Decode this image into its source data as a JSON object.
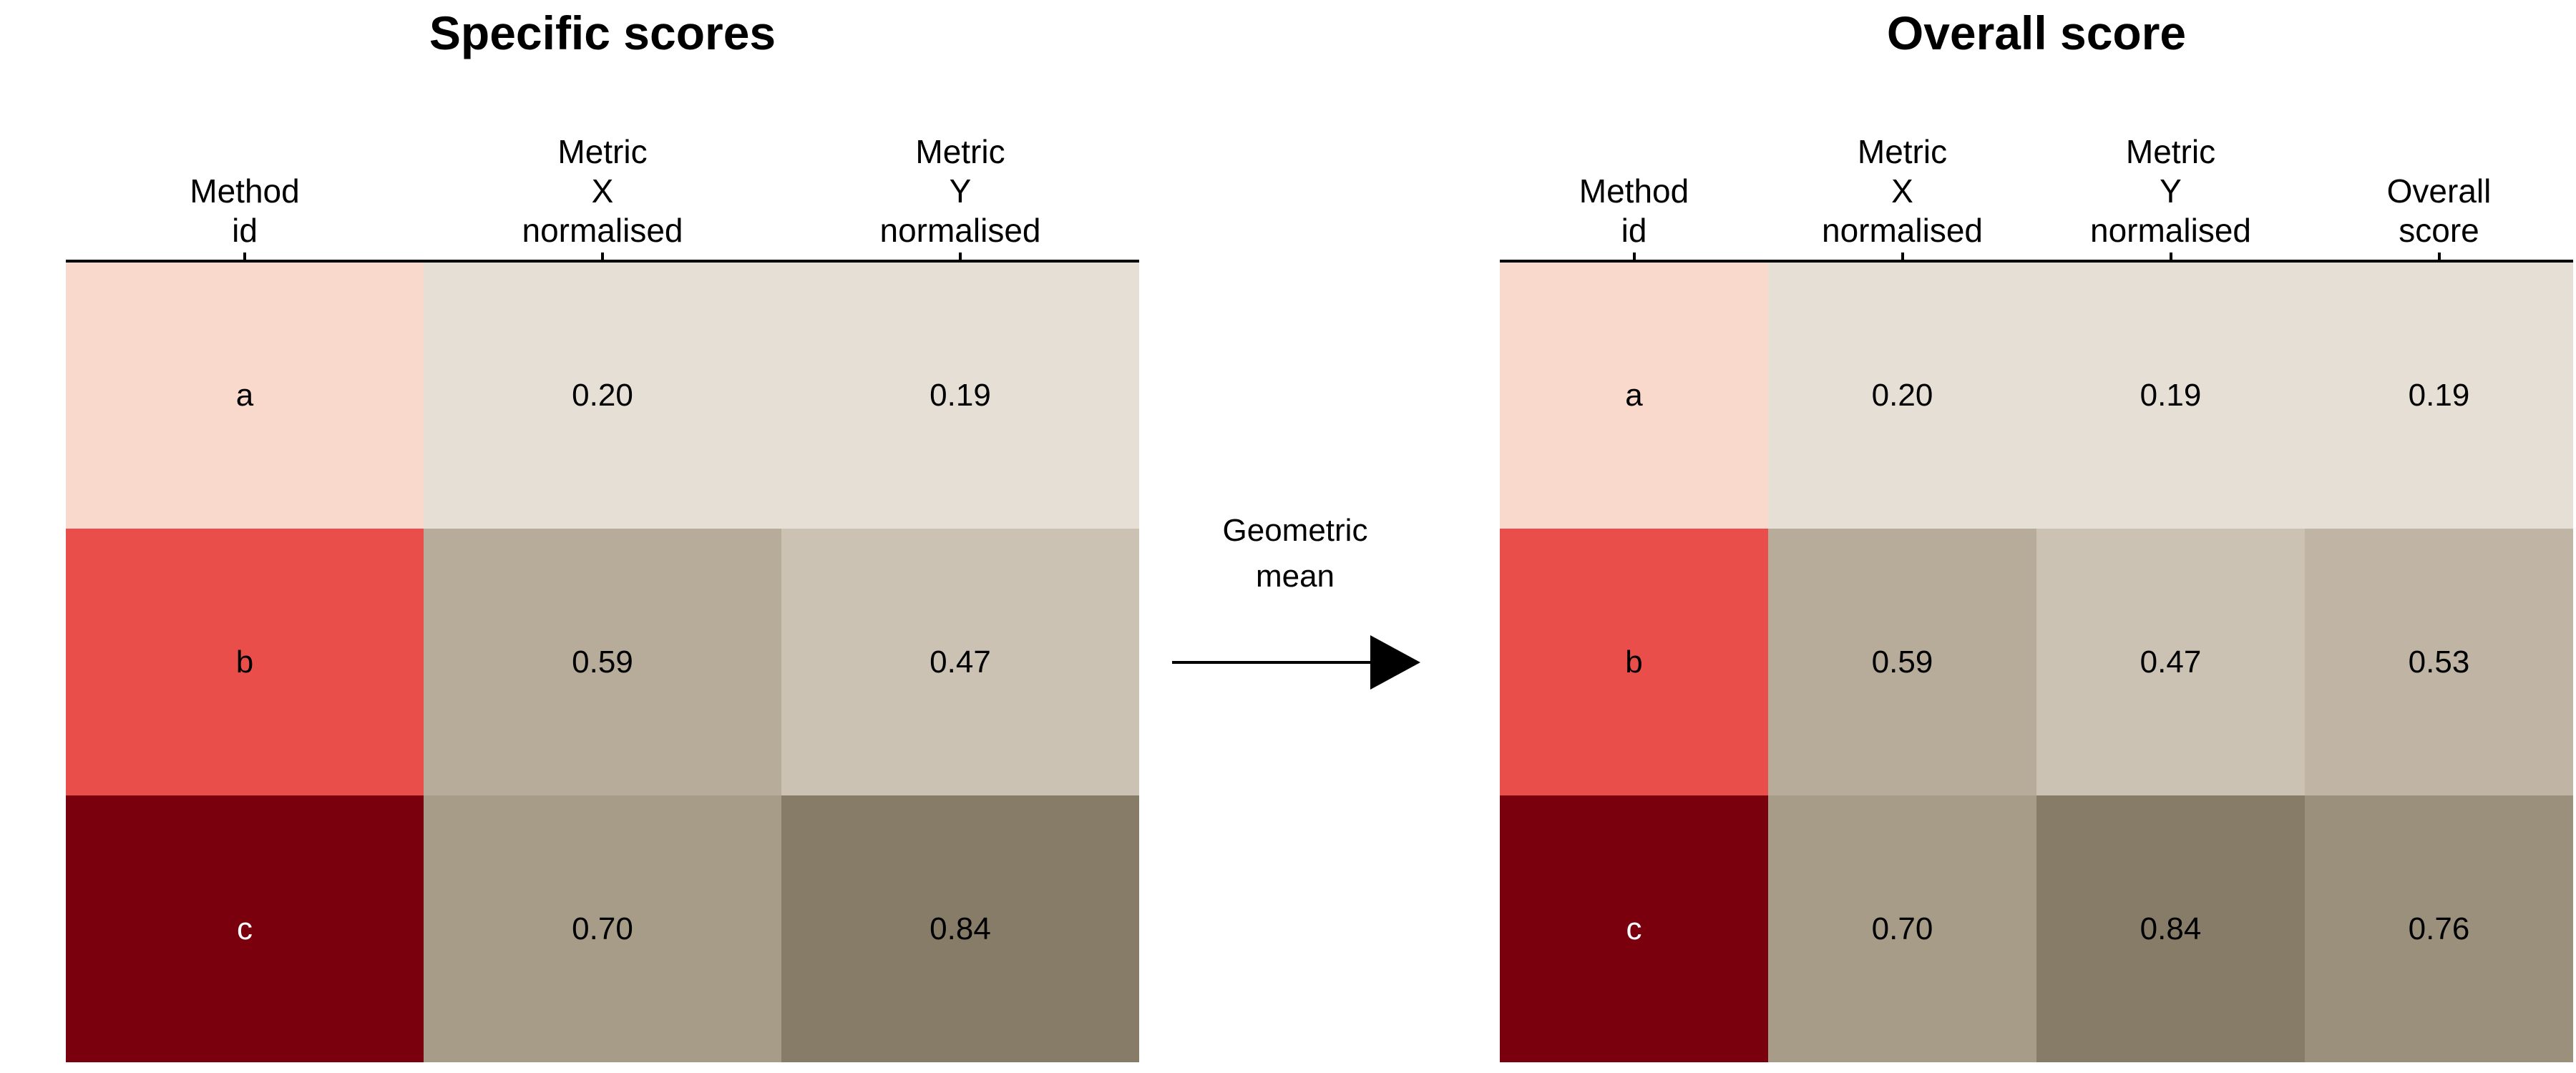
{
  "panels": {
    "left": {
      "title": "Specific scores",
      "headers": [
        "Method\nid",
        "Metric\nX\nnormalised",
        "Metric\nY\nnormalised"
      ],
      "rows": [
        {
          "id": "a",
          "values": [
            "0.20",
            "0.19"
          ]
        },
        {
          "id": "b",
          "values": [
            "0.59",
            "0.47"
          ]
        },
        {
          "id": "c",
          "values": [
            "0.70",
            "0.84"
          ]
        }
      ]
    },
    "right": {
      "title": "Overall score",
      "headers": [
        "Method\nid",
        "Metric\nX\nnormalised",
        "Metric\nY\nnormalised",
        "Overall\nscore"
      ],
      "rows": [
        {
          "id": "a",
          "values": [
            "0.20",
            "0.19",
            "0.19"
          ]
        },
        {
          "id": "b",
          "values": [
            "0.59",
            "0.47",
            "0.53"
          ]
        },
        {
          "id": "c",
          "values": [
            "0.70",
            "0.84",
            "0.76"
          ]
        }
      ]
    }
  },
  "arrow_label": "Geometric\nmean",
  "colors": {
    "method": {
      "a": "#f9d9cb",
      "b": "#ea4e4b",
      "c": "#7b000e"
    },
    "method_text": {
      "a": "#000000",
      "b": "#000000",
      "c": "#ffffff"
    },
    "score_scale": [
      "#e6dfd6",
      "#b7ab99",
      "#877c68"
    ]
  },
  "chart_data": [
    {
      "type": "table",
      "title": "Specific scores",
      "columns": [
        "Method id",
        "Metric X normalised",
        "Metric Y normalised"
      ],
      "rows": [
        [
          "a",
          0.2,
          0.19
        ],
        [
          "b",
          0.59,
          0.47
        ],
        [
          "c",
          0.7,
          0.84
        ]
      ]
    },
    {
      "type": "table",
      "title": "Overall score",
      "columns": [
        "Method id",
        "Metric X normalised",
        "Metric Y normalised",
        "Overall score"
      ],
      "rows": [
        [
          "a",
          0.2,
          0.19,
          0.19
        ],
        [
          "b",
          0.59,
          0.47,
          0.53
        ],
        [
          "c",
          0.7,
          0.84,
          0.76
        ]
      ]
    }
  ]
}
